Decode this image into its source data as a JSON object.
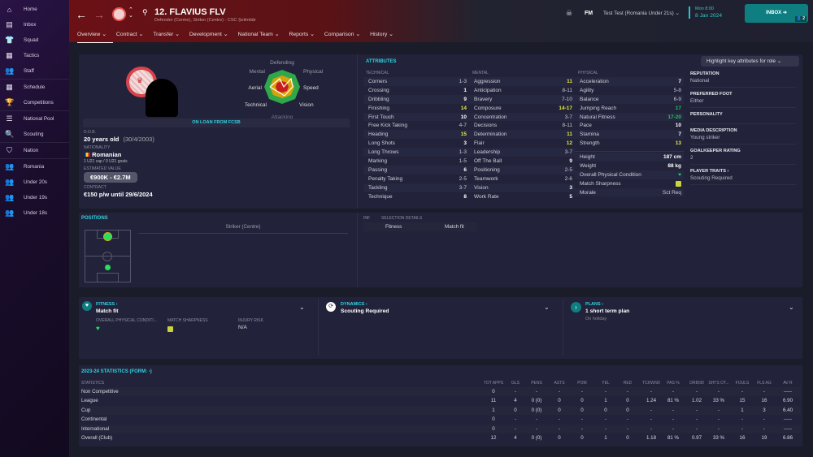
{
  "sidebar": {
    "items": [
      {
        "label": "Home",
        "icon": "home-icon",
        "glyph": "⌂"
      },
      {
        "label": "Inbox",
        "icon": "inbox-icon",
        "glyph": "▤"
      },
      {
        "label": "Squad",
        "icon": "shirt-icon",
        "glyph": "👕"
      },
      {
        "label": "Tactics",
        "icon": "tactics-icon",
        "glyph": "▦"
      },
      {
        "label": "Staff",
        "icon": "staff-icon",
        "glyph": "👥"
      },
      {
        "label": "Schedule",
        "icon": "calendar-icon",
        "glyph": "▦"
      },
      {
        "label": "Competitions",
        "icon": "trophy-icon",
        "glyph": "🏆"
      },
      {
        "label": "National Pool",
        "icon": "list-icon",
        "glyph": "☰"
      },
      {
        "label": "Scouting",
        "icon": "search-icon",
        "glyph": "🔍"
      },
      {
        "label": "Nation",
        "icon": "shield-icon",
        "glyph": "⛉"
      },
      {
        "label": "Romania",
        "icon": "team-icon",
        "glyph": "👥"
      },
      {
        "label": "Under 20s",
        "icon": "team-icon",
        "glyph": "👥"
      },
      {
        "label": "Under 19s",
        "icon": "team-icon",
        "glyph": "👥"
      },
      {
        "label": "Under 18s",
        "icon": "team-icon",
        "glyph": "👥"
      }
    ]
  },
  "header": {
    "player_name": "12. FLAVIUS FLV",
    "player_sub": "Defender (Centre), Striker (Centre) - CSC Şelimbăr",
    "manager": "Test Test (Romania Under 21s)",
    "fm": "FM",
    "date_line1": "Mon 8:00",
    "date_line2": "8 Jan 2024",
    "inbox_label": "INBOX",
    "inbox_count": "2"
  },
  "tabs": [
    "Overview",
    "Contract",
    "Transfer",
    "Development",
    "National Team",
    "Reports",
    "Comparison",
    "History"
  ],
  "profile": {
    "loan_banner": "ON LOAN FROM FCSB",
    "dob_label": "D.O.B.",
    "age": "20 years old",
    "dob": "(30/4/2003)",
    "nationality_label": "NATIONALITY",
    "nationality": "Romanian",
    "caps": "1 U21 cap / 0 U21 goals",
    "value_label": "ESTIMATED VALUE",
    "value": "€900K - €2.7M",
    "contract_label": "CONTRACT",
    "contract": "€150 p/w until 29/6/2024",
    "radar": {
      "labels": [
        "Defending",
        "Physical",
        "Speed",
        "Vision",
        "Attacking",
        "Technical",
        "Aerial",
        "Mental"
      ]
    }
  },
  "attributes": {
    "title": "ATTRIBUTES",
    "highlight_label": "Highlight key attributes for role",
    "technical_label": "TECHNICAL",
    "mental_label": "MENTAL",
    "physical_label": "PHYSICAL",
    "technical": [
      [
        "Corners",
        "1-3",
        ""
      ],
      [
        "Crossing",
        "1",
        ""
      ],
      [
        "Dribbling",
        "9",
        ""
      ],
      [
        "Finishing",
        "14",
        "yellow"
      ],
      [
        "First Touch",
        "10",
        ""
      ],
      [
        "Free Kick Taking",
        "4-7",
        ""
      ],
      [
        "Heading",
        "15",
        "yellow"
      ],
      [
        "Long Shots",
        "3",
        ""
      ],
      [
        "Long Throws",
        "1-3",
        ""
      ],
      [
        "Marking",
        "1-5",
        ""
      ],
      [
        "Passing",
        "6",
        ""
      ],
      [
        "Penalty Taking",
        "2-5",
        ""
      ],
      [
        "Tackling",
        "3-7",
        ""
      ],
      [
        "Technique",
        "8",
        ""
      ]
    ],
    "mental": [
      [
        "Aggression",
        "11",
        "yellow"
      ],
      [
        "Anticipation",
        "8-11",
        ""
      ],
      [
        "Bravery",
        "7-10",
        ""
      ],
      [
        "Composure",
        "14-17",
        "yellow"
      ],
      [
        "Concentration",
        "3-7",
        ""
      ],
      [
        "Decisions",
        "8-11",
        ""
      ],
      [
        "Determination",
        "11",
        "yellow"
      ],
      [
        "Flair",
        "12",
        "yellow"
      ],
      [
        "Leadership",
        "3-7",
        ""
      ],
      [
        "Off The Ball",
        "9",
        ""
      ],
      [
        "Positioning",
        "2-5",
        ""
      ],
      [
        "Teamwork",
        "2-6",
        ""
      ],
      [
        "Vision",
        "3",
        ""
      ],
      [
        "Work Rate",
        "5",
        ""
      ]
    ],
    "physical": [
      [
        "Acceleration",
        "7",
        ""
      ],
      [
        "Agility",
        "5-8",
        ""
      ],
      [
        "Balance",
        "6-9",
        ""
      ],
      [
        "Jumping Reach",
        "17",
        "green"
      ],
      [
        "Natural Fitness",
        "17-20",
        "green"
      ],
      [
        "Pace",
        "10",
        ""
      ],
      [
        "Stamina",
        "7",
        ""
      ],
      [
        "Strength",
        "13",
        "yellow"
      ]
    ],
    "extra": [
      [
        "Height",
        "187 cm"
      ],
      [
        "Weight",
        "88 kg"
      ],
      [
        "Overall Physical Condition",
        ""
      ],
      [
        "Match Sharpness",
        ""
      ],
      [
        "Morale",
        "Sct Req"
      ]
    ]
  },
  "info": [
    [
      "REPUTATION",
      "National"
    ],
    [
      "PREFERRED FOOT",
      "Either"
    ],
    [
      "PERSONALITY",
      ""
    ],
    [
      "MEDIA DESCRIPTION",
      "Young striker"
    ],
    [
      "GOALKEEPER RATING",
      "2"
    ],
    [
      "PLAYER TRAITS ›",
      "Scouting Required"
    ]
  ],
  "positions": {
    "title": "POSITIONS",
    "selected": "Striker (Centre)",
    "inf_label": "INF",
    "selection_label": "SELECTION DETAILS",
    "fitness_label": "Fitness",
    "fitness_value": "Match fit"
  },
  "cards": {
    "fitness": {
      "title": "FITNESS ›",
      "value": "Match fit",
      "col1": "OVERALL PHYSICAL CONDITI...",
      "col2": "MATCH SHARPNESS",
      "col3": "INJURY RISK",
      "col3_value": "N/A"
    },
    "dynamics": {
      "title": "DYNAMICS ›",
      "value": "Scouting Required"
    },
    "plans": {
      "title": "PLANS ›",
      "value": "1 short term plan",
      "sub": "On holiday"
    }
  },
  "stats": {
    "title": "2023-24 STATISTICS (FORM: -)",
    "header_label": "STATISTICS",
    "columns": [
      "TOT APPS",
      "GLS",
      "PENS",
      "ASTS",
      "POM",
      "YEL",
      "RED",
      "TCKW/90",
      "PAS %",
      "DRB/90",
      "SHTS OT...",
      "FOULS",
      "FLS AG",
      "AV R"
    ],
    "rows": [
      {
        "name": "Non Competitive",
        "values": [
          "0",
          "-",
          "-",
          "-",
          "-",
          "-",
          "-",
          "-",
          "-",
          "-",
          "-",
          "-",
          "-",
          "-----"
        ]
      },
      {
        "name": "League",
        "values": [
          "11",
          "4",
          "0 (0)",
          "0",
          "0",
          "1",
          "0",
          "1.24",
          "81 %",
          "1.02",
          "33 %",
          "15",
          "16",
          "6.90"
        ]
      },
      {
        "name": "Cup",
        "values": [
          "1",
          "0",
          "0 (0)",
          "0",
          "0",
          "0",
          "0",
          "-",
          "-",
          "-",
          "-",
          "1",
          "3",
          "6.40"
        ]
      },
      {
        "name": "Continental",
        "values": [
          "0",
          "-",
          "-",
          "-",
          "-",
          "-",
          "-",
          "-",
          "-",
          "-",
          "-",
          "-",
          "-",
          "-----"
        ]
      },
      {
        "name": "International",
        "values": [
          "0",
          "-",
          "-",
          "-",
          "-",
          "-",
          "-",
          "-",
          "-",
          "-",
          "-",
          "-",
          "-",
          "-----"
        ]
      },
      {
        "name": "Overall (Club)",
        "values": [
          "12",
          "4",
          "0 (0)",
          "0",
          "0",
          "1",
          "0",
          "1.18",
          "81 %",
          "0.97",
          "33 %",
          "16",
          "19",
          "6.86"
        ]
      }
    ]
  },
  "colors": {
    "accent": "#2ed3e0",
    "header_red": "#6b1116",
    "inbox": "#0f7e80",
    "highlight": "#e3e640",
    "good": "#22c55e"
  }
}
